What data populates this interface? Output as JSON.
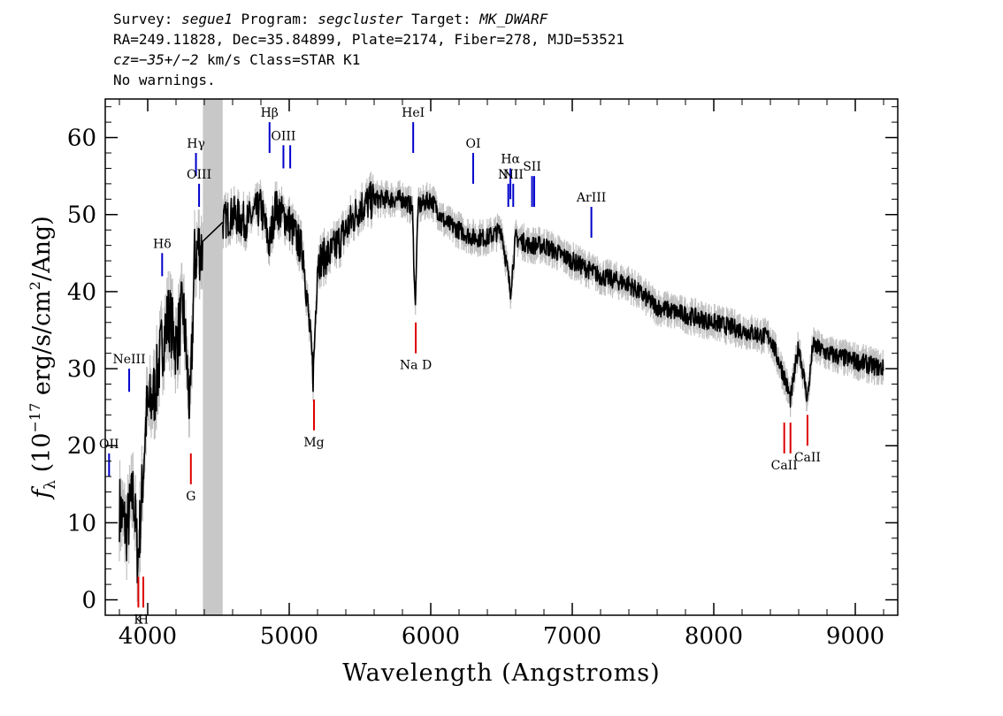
{
  "header": {
    "line1": {
      "survey_label": "Survey: ",
      "survey": "segue1",
      "program_label": " Program: ",
      "program": "segcluster",
      "target_label": " Target: ",
      "target": "MK_DWARF"
    },
    "line2": "RA=249.11828, Dec=35.84899, Plate=2174, Fiber=278, MJD=53521",
    "line3": {
      "cz_label": "cz",
      "cz_value": "=−35+/−2",
      "cz_rest": " km/s Class=STAR K1"
    },
    "line4": "No warnings."
  },
  "chart_data": {
    "type": "line",
    "xlabel": "Wavelength (Angstroms)",
    "ylabel": "f_λ (10^-17 erg/s/cm^2/Ang)",
    "ylabel_parts": {
      "f": "f",
      "lambda": "λ",
      "a": " (10",
      "exp1": "−17",
      "b": " erg/s/cm",
      "exp2": "2",
      "c": "/Ang)"
    },
    "xlim": [
      3700,
      9300
    ],
    "ylim": [
      -2,
      65
    ],
    "xticks": [
      4000,
      5000,
      6000,
      7000,
      8000,
      9000
    ],
    "yticks": [
      0,
      10,
      20,
      30,
      40,
      50,
      60
    ],
    "masked_region": [
      4390,
      4530
    ],
    "spectrum_anchor_points": [
      [
        3800,
        12
      ],
      [
        3850,
        9
      ],
      [
        3900,
        14
      ],
      [
        3930,
        5
      ],
      [
        3960,
        14
      ],
      [
        3990,
        24
      ],
      [
        4050,
        27
      ],
      [
        4100,
        33
      ],
      [
        4150,
        37
      ],
      [
        4200,
        33
      ],
      [
        4250,
        38
      ],
      [
        4300,
        24
      ],
      [
        4330,
        44
      ],
      [
        4360,
        46
      ],
      [
        4390,
        45
      ],
      [
        4530,
        49
      ],
      [
        4600,
        50
      ],
      [
        4700,
        49
      ],
      [
        4800,
        51
      ],
      [
        4860,
        46
      ],
      [
        4900,
        51
      ],
      [
        5000,
        49
      ],
      [
        5100,
        45
      ],
      [
        5170,
        29
      ],
      [
        5200,
        44
      ],
      [
        5300,
        45
      ],
      [
        5400,
        48
      ],
      [
        5500,
        51
      ],
      [
        5600,
        52
      ],
      [
        5700,
        52
      ],
      [
        5800,
        52
      ],
      [
        5870,
        51
      ],
      [
        5890,
        38
      ],
      [
        5910,
        51
      ],
      [
        6000,
        52
      ],
      [
        6100,
        49
      ],
      [
        6200,
        48
      ],
      [
        6300,
        47
      ],
      [
        6400,
        47
      ],
      [
        6500,
        48
      ],
      [
        6563,
        40
      ],
      [
        6600,
        47
      ],
      [
        6700,
        46
      ],
      [
        6800,
        46
      ],
      [
        7000,
        44
      ],
      [
        7200,
        42
      ],
      [
        7400,
        41
      ],
      [
        7600,
        38
      ],
      [
        7800,
        37
      ],
      [
        8000,
        36
      ],
      [
        8200,
        35
      ],
      [
        8400,
        34
      ],
      [
        8498,
        29
      ],
      [
        8542,
        26
      ],
      [
        8600,
        33
      ],
      [
        8662,
        26
      ],
      [
        8700,
        33
      ],
      [
        8800,
        32
      ],
      [
        9000,
        31
      ],
      [
        9200,
        30
      ]
    ],
    "emission_lines": [
      {
        "label": "OII",
        "x": 3727,
        "y_top": 19,
        "y_bot": 16
      },
      {
        "label": "NeIII",
        "x": 3869,
        "y_top": 30,
        "y_bot": 27
      },
      {
        "label": "Hδ",
        "x": 4102,
        "y_top": 45,
        "y_bot": 42
      },
      {
        "label": "Hγ",
        "x": 4341,
        "y_top": 58,
        "y_bot": 55
      },
      {
        "label": "OIII",
        "x": 4363,
        "y_top": 54,
        "y_bot": 51
      },
      {
        "label": "Hβ",
        "x": 4861,
        "y_top": 62,
        "y_bot": 58
      },
      {
        "label": "OIII",
        "x": 4959,
        "y_top": 59,
        "y_bot": 56
      },
      {
        "label": "OIII",
        "x": 5007,
        "y_top": 59,
        "y_bot": 56
      },
      {
        "label": "HeI",
        "x": 5876,
        "y_top": 62,
        "y_bot": 58
      },
      {
        "label": "OI",
        "x": 6300,
        "y_top": 58,
        "y_bot": 54
      },
      {
        "label": "NII",
        "x": 6548,
        "y_top": 54,
        "y_bot": 51
      },
      {
        "label": "Hα",
        "x": 6563,
        "y_top": 56,
        "y_bot": 52
      },
      {
        "label": "NII",
        "x": 6583,
        "y_top": 54,
        "y_bot": 51
      },
      {
        "label": "SII",
        "x": 6716,
        "y_top": 55,
        "y_bot": 51
      },
      {
        "label": "SII",
        "x": 6731,
        "y_top": 55,
        "y_bot": 51
      },
      {
        "label": "ArIII",
        "x": 7135,
        "y_top": 51,
        "y_bot": 47
      }
    ],
    "absorption_lines": [
      {
        "label": "K",
        "x": 3934,
        "y_top": 3,
        "y_bot": -1
      },
      {
        "label": "H",
        "x": 3969,
        "y_top": 3,
        "y_bot": -1
      },
      {
        "label": "G",
        "x": 4305,
        "y_top": 19,
        "y_bot": 15
      },
      {
        "label": "Mg",
        "x": 5175,
        "y_top": 26,
        "y_bot": 22
      },
      {
        "label": "Na D",
        "x": 5894,
        "y_top": 36,
        "y_bot": 32
      },
      {
        "label": "CaII",
        "x": 8498,
        "y_top": 23,
        "y_bot": 19
      },
      {
        "label": "CaII",
        "x": 8542,
        "y_top": 23,
        "y_bot": 19
      },
      {
        "label": "CaII",
        "x": 8662,
        "y_top": 24,
        "y_bot": 20
      }
    ],
    "colors": {
      "emission": "#0000cc",
      "absorption": "#dd0000",
      "error": "#c0c0c0",
      "mask": "#c8c8c8",
      "flux": "#000000"
    }
  }
}
